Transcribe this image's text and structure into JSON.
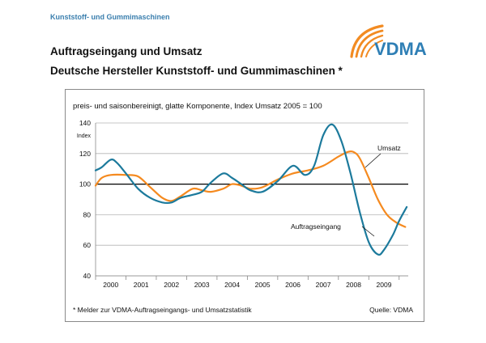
{
  "header": {
    "category": "Kunststoff- und Gummimaschinen",
    "title_line1": "Auftragseingang und Umsatz",
    "title_line2": "Deutsche Hersteller Kunststoff- und Gummimaschinen *",
    "logo_text": "VDMA"
  },
  "colors": {
    "auftragseingang": "#1c7a9c",
    "umsatz": "#f58a1f",
    "logo_orange": "#f28b22",
    "logo_text": "#2f7fb5",
    "category_text": "#3b7fae"
  },
  "chart_data": {
    "type": "line",
    "title": "preis- und saisonbereinigt, glatte Komponente, Index Umsatz 2005 = 100",
    "ylabel": "Index",
    "xlabel": "",
    "ylim": [
      40,
      140
    ],
    "yticks": [
      40,
      60,
      80,
      100,
      120,
      140
    ],
    "categories": [
      "2000",
      "2001",
      "2002",
      "2003",
      "2004",
      "2005",
      "2006",
      "2007",
      "2008",
      "2009"
    ],
    "xlim": [
      1999.5,
      2009.8
    ],
    "reference_line": 100,
    "grid": "horizontal",
    "series": [
      {
        "name": "Umsatz",
        "x": [
          1999.5,
          1999.7,
          2000.0,
          2000.5,
          2000.9,
          2001.3,
          2001.7,
          2002.0,
          2002.3,
          2002.7,
          2003.0,
          2003.3,
          2003.7,
          2004.0,
          2004.3,
          2004.6,
          2005.0,
          2005.5,
          2006.0,
          2006.5,
          2007.0,
          2007.5,
          2007.8,
          2008.0,
          2008.2,
          2008.5,
          2008.8,
          2009.1,
          2009.4,
          2009.7
        ],
        "y": [
          99,
          104,
          106,
          106,
          105,
          98,
          91,
          89,
          92,
          97,
          96,
          95,
          97,
          100,
          99,
          97,
          98,
          103,
          107,
          109,
          112,
          118,
          121,
          121,
          117,
          104,
          90,
          80,
          75,
          72
        ]
      },
      {
        "name": "Auftragseingang",
        "x": [
          1999.5,
          1999.7,
          2000.0,
          2000.2,
          2000.5,
          2000.9,
          2001.3,
          2001.7,
          2002.0,
          2002.3,
          2002.7,
          2003.0,
          2003.3,
          2003.7,
          2004.0,
          2004.3,
          2004.6,
          2005.0,
          2005.5,
          2006.0,
          2006.4,
          2006.7,
          2007.0,
          2007.3,
          2007.6,
          2007.9,
          2008.2,
          2008.5,
          2008.8,
          2009.0,
          2009.3,
          2009.5,
          2009.75
        ],
        "y": [
          109,
          111,
          116,
          114,
          107,
          97,
          91,
          88,
          88,
          91,
          93,
          95,
          101,
          107,
          104,
          100,
          96,
          95,
          102,
          112,
          106,
          112,
          132,
          139,
          128,
          107,
          82,
          62,
          54,
          57,
          67,
          76,
          85
        ]
      }
    ],
    "annotations": [
      {
        "text": "Umsatz",
        "series": "Umsatz"
      },
      {
        "text": "Auftragseingang",
        "series": "Auftragseingang"
      }
    ]
  },
  "footer": {
    "footnote": "* Melder zur VDMA-Auftragseingangs- und Umsatzstatistik",
    "source": "Quelle: VDMA"
  }
}
